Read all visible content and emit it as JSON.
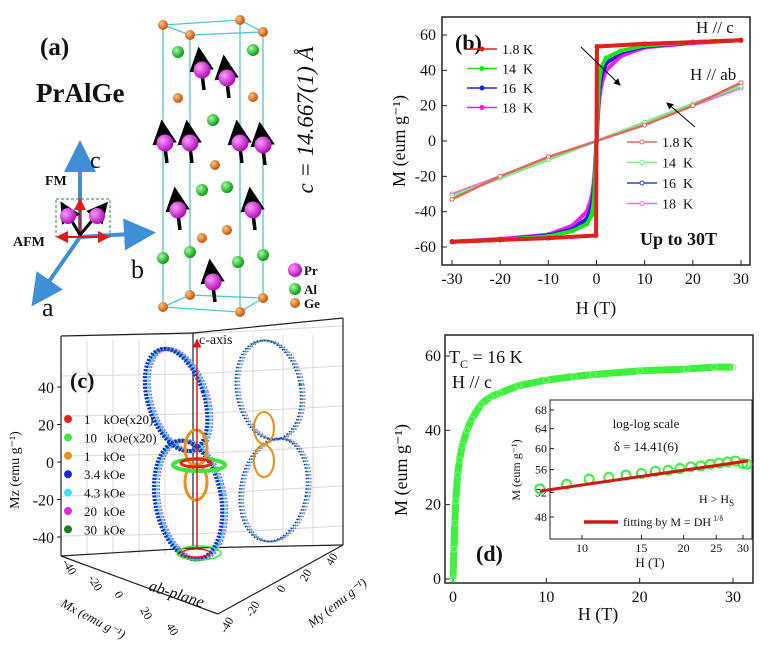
{
  "panel_a": {
    "label": "(a)",
    "compound": "PrAlGe",
    "lattice_label": "c = 14.667(1) Å",
    "axis_labels": {
      "a": "a",
      "b": "b",
      "c": "c"
    },
    "fm_label": "FM",
    "afm_label": "AFM",
    "legend": [
      {
        "label": "Pr",
        "color": "#d21fd6"
      },
      {
        "label": "Al",
        "color": "#1fbf2a"
      },
      {
        "label": "Ge",
        "color": "#e0700f"
      }
    ]
  },
  "chart_data": [
    {
      "id": "b",
      "type": "line",
      "panel_label": "(b)",
      "xlabel": "H (T)",
      "ylabel": "M (eum g⁻¹)",
      "xlim": [
        -32,
        32
      ],
      "ylim": [
        -70,
        70
      ],
      "xticks": [
        -30,
        -20,
        -10,
        0,
        10,
        20,
        30
      ],
      "yticks": [
        -60,
        -40,
        -20,
        0,
        20,
        40,
        60
      ],
      "annotations": {
        "hc": "H // c",
        "hab": "H // ab",
        "note": "Up to 30T"
      },
      "series": [
        {
          "name": "1.8 K",
          "group": "H // c",
          "color": "#e0201a",
          "marker": "filled",
          "x": [
            -30,
            -20,
            -10,
            -0.1,
            0.1,
            10,
            20,
            30
          ],
          "y": [
            -57,
            -56,
            -55,
            -53.5,
            53.5,
            55,
            56,
            57
          ]
        },
        {
          "name": "14  K",
          "group": "H // c",
          "color": "#22e01c",
          "marker": "filled",
          "x": [
            -30,
            -20,
            -10,
            -5,
            -2,
            -1,
            -0.5,
            0,
            0.5,
            1,
            2,
            5,
            10,
            20,
            30
          ],
          "y": [
            -57,
            -56,
            -54,
            -51,
            -47,
            -42,
            -33,
            0,
            33,
            42,
            47,
            51,
            54,
            56,
            57
          ]
        },
        {
          "name": "16  K",
          "group": "H // c",
          "color": "#1a22d6",
          "marker": "filled",
          "x": [
            -30,
            -20,
            -10,
            -5,
            -2,
            -1,
            -0.5,
            0,
            0.5,
            1,
            2,
            5,
            10,
            20,
            30
          ],
          "y": [
            -57,
            -56,
            -53.5,
            -50,
            -44,
            -37,
            -27,
            0,
            27,
            37,
            44,
            50,
            53.5,
            56,
            57
          ]
        },
        {
          "name": "18  K",
          "group": "H // c",
          "color": "#f01cf0",
          "marker": "filled",
          "x": [
            -30,
            -20,
            -10,
            -5,
            -2,
            -1,
            -0.5,
            0,
            0.5,
            1,
            2,
            5,
            10,
            20,
            30
          ],
          "y": [
            -57,
            -55.5,
            -53,
            -48,
            -40,
            -32,
            -22,
            0,
            22,
            32,
            40,
            48,
            53,
            55.5,
            57
          ]
        },
        {
          "name": "1.8 K",
          "group": "H // ab",
          "color": "#e06a5a",
          "marker": "open",
          "x": [
            -30,
            -20,
            -10,
            0,
            10,
            20,
            30
          ],
          "y": [
            -33,
            -20,
            -9,
            0,
            9,
            20,
            33
          ]
        },
        {
          "name": "14  K",
          "group": "H // ab",
          "color": "#7cf07c",
          "marker": "open",
          "x": [
            -30,
            -20,
            -10,
            0,
            10,
            20,
            30
          ],
          "y": [
            -31,
            -21,
            -10.5,
            0,
            10.5,
            21,
            31
          ]
        },
        {
          "name": "16  K",
          "group": "H // ab",
          "color": "#3040d0",
          "marker": "open",
          "x": [
            -30,
            -20,
            -10,
            0,
            10,
            20,
            30
          ],
          "y": [
            -31,
            -21,
            -10.5,
            0,
            10.5,
            21,
            31
          ]
        },
        {
          "name": "18  K",
          "group": "H // ab",
          "color": "#f070f0",
          "marker": "open",
          "x": [
            -30,
            -20,
            -10,
            0,
            10,
            20,
            30
          ],
          "y": [
            -30,
            -20,
            -10,
            0,
            10,
            20,
            30
          ]
        }
      ]
    },
    {
      "id": "c",
      "type": "scatter",
      "panel_label": "(c)",
      "zlabel": "Mz (emu g⁻¹)",
      "xlabel": "Mx (emu g⁻¹)",
      "ylabel": "My (emu g⁻¹)",
      "zticks": [
        -40,
        -20,
        0,
        20,
        40
      ],
      "xticks": [
        -40,
        -20,
        0,
        20,
        40
      ],
      "yticks": [
        -40,
        -20,
        0,
        20,
        40
      ],
      "annotations": {
        "caxis": "c-axis",
        "abplane": "ab-plane"
      },
      "series": [
        {
          "name": "1    kOe(x20)",
          "color": "#e8201a"
        },
        {
          "name": "10   kOe(x20)",
          "color": "#3ee83a"
        },
        {
          "name": "1    kOe",
          "color": "#e8901a"
        },
        {
          "name": "3.4 kOe",
          "color": "#1a2ad8"
        },
        {
          "name": "4.3 kOe",
          "color": "#3ee0f0"
        },
        {
          "name": "20  kOe",
          "color": "#e02ae0"
        },
        {
          "name": "30  kOe",
          "color": "#1a7a22"
        }
      ]
    },
    {
      "id": "d",
      "type": "scatter",
      "panel_label": "(d)",
      "xlabel": "H (T)",
      "ylabel": "M (eum g⁻¹)",
      "xlim": [
        -1,
        32
      ],
      "ylim": [
        -1,
        65
      ],
      "xticks": [
        0,
        10,
        20,
        30
      ],
      "yticks": [
        0,
        20,
        40,
        60
      ],
      "annotations": {
        "tc": "T",
        "tc_sub": "C",
        "tc_value": " = 16 K",
        "hc": "H // c"
      },
      "series": [
        {
          "color": "#3cf03c",
          "x": [
            0,
            0.1,
            0.2,
            0.3,
            0.5,
            0.7,
            1,
            1.5,
            2,
            3,
            4,
            5,
            7,
            10,
            13,
            15,
            20,
            25,
            28,
            30
          ],
          "y": [
            0,
            8,
            15,
            21,
            28,
            32,
            36,
            40,
            43,
            47,
            49,
            50,
            52,
            53.5,
            54.5,
            55,
            56,
            56.5,
            57,
            57
          ]
        }
      ]
    },
    {
      "id": "d-inset",
      "type": "scatter",
      "xlabel": "H (T)",
      "ylabel": "M (eum g⁻¹)",
      "scale": "log-log",
      "xlim": [
        7.5,
        31.5
      ],
      "ylim": [
        45.5,
        70
      ],
      "xticks": [
        10,
        15,
        20,
        25,
        30
      ],
      "yticks": [
        48,
        52,
        56,
        60,
        64,
        68
      ],
      "annotations": {
        "scale": "log-log scale",
        "delta": "δ = 14.41(6)",
        "cond": "H > H",
        "cond_sub": "S"
      },
      "legend": {
        "fit_label": "fitting by M = DH",
        "fit_sup": "1/δ"
      },
      "series": [
        {
          "name": "data",
          "color": "#3cf03c",
          "x": [
            7.5,
            9,
            10.5,
            12,
            13.5,
            15,
            16.5,
            18,
            19.5,
            21,
            22.5,
            24,
            25.5,
            27,
            28.5,
            30,
            30.8
          ],
          "y": [
            52.6,
            53.4,
            54.3,
            54.6,
            55.0,
            55.3,
            55.7,
            55.9,
            56.2,
            56.5,
            56.7,
            57.0,
            57.2,
            57.4,
            57.6,
            57.1,
            57.0
          ]
        },
        {
          "name": "fit",
          "color": "#d01818",
          "delta": 14.41,
          "D": 45.4
        }
      ]
    }
  ]
}
